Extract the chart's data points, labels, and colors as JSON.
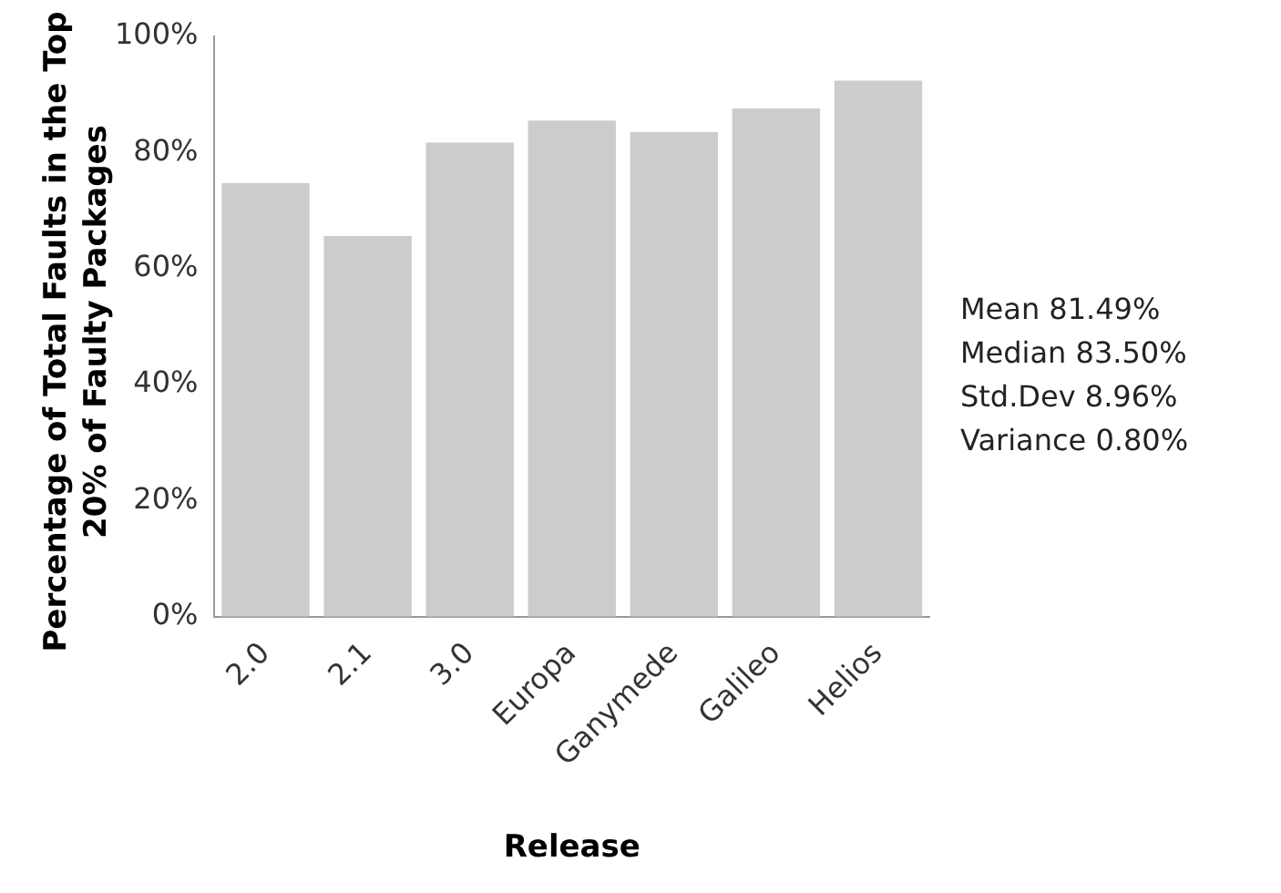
{
  "chart_data": {
    "type": "bar",
    "xlabel": "Release",
    "ylabel": "Percentage of Total Faults in the Top 20% of Faulty Packages",
    "categories": [
      "2.0",
      "2.1",
      "3.0",
      "Europa",
      "Ganymede",
      "Galileo",
      "Helios"
    ],
    "values": [
      74.7,
      65.6,
      81.7,
      85.5,
      83.5,
      87.6,
      92.4
    ],
    "color": "#cccccc",
    "ylim": [
      0,
      100
    ],
    "yticks": [
      {
        "value": 0,
        "label": "0%"
      },
      {
        "value": 20,
        "label": "20%"
      },
      {
        "value": 40,
        "label": "40%"
      },
      {
        "value": 60,
        "label": "60%"
      },
      {
        "value": 80,
        "label": "80%"
      },
      {
        "value": 100,
        "label": "100%"
      }
    ],
    "grid": false,
    "legend": false,
    "annotations": [
      "Mean 81.49%",
      "Median 83.50%",
      "Std.Dev 8.96%",
      "Variance 0.80%"
    ]
  }
}
